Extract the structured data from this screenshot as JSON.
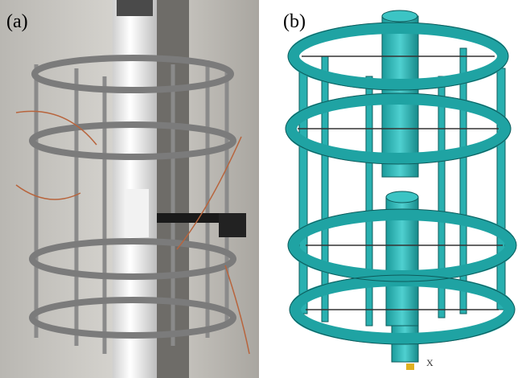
{
  "panels": [
    {
      "label": "(a)"
    },
    {
      "label": "(b)",
      "axis_label": "X"
    }
  ]
}
